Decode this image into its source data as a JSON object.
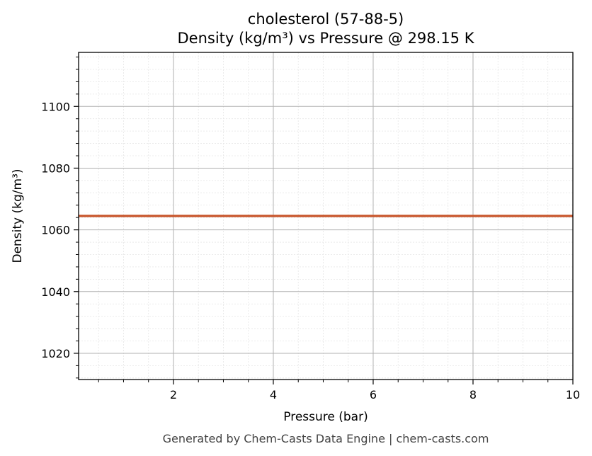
{
  "chart_data": {
    "type": "line",
    "title": "cholesterol (57-88-5)",
    "subtitle": "Density (kg/m³) vs Pressure @ 298.15 K",
    "xlabel": "Pressure (bar)",
    "ylabel": "Density (kg/m³)",
    "xlim": [
      0.1,
      10
    ],
    "ylim": [
      1011.5,
      1117.5
    ],
    "x_ticks": [
      2,
      4,
      6,
      8,
      10
    ],
    "y_ticks": [
      1020,
      1040,
      1060,
      1080,
      1100
    ],
    "grid": true,
    "minor_grid": true,
    "series": [
      {
        "color": "#c8552b",
        "x": [
          0.1,
          1,
          2,
          3,
          4,
          5,
          6,
          7,
          8,
          9,
          10
        ],
        "y": [
          1064.5,
          1064.5,
          1064.5,
          1064.5,
          1064.5,
          1064.5,
          1064.5,
          1064.5,
          1064.5,
          1064.5,
          1064.5
        ]
      }
    ]
  },
  "footer": "Generated by Chem-Casts Data Engine | chem-casts.com"
}
